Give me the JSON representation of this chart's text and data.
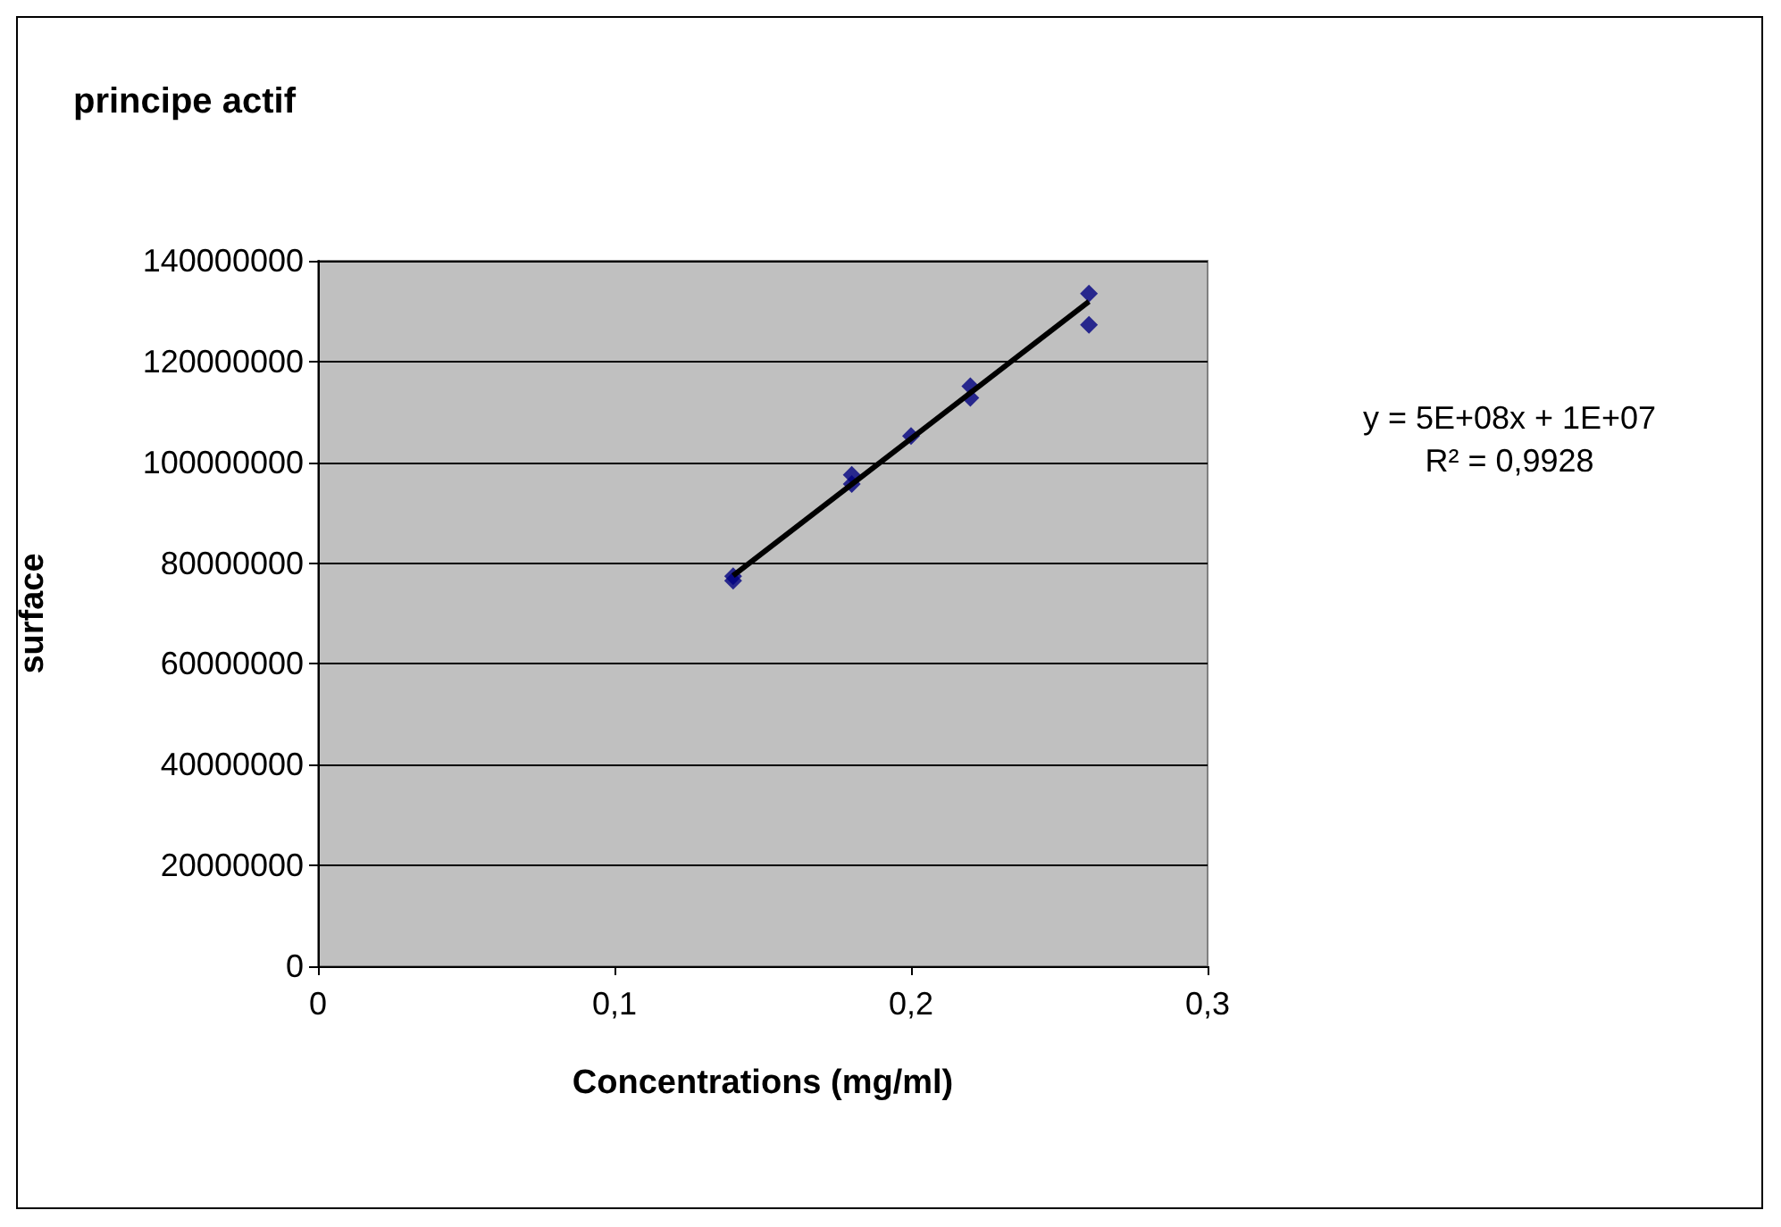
{
  "chart_data": {
    "type": "scatter",
    "title": "principe actif",
    "xlabel": "Concentrations (mg/ml)",
    "ylabel": "surface",
    "annotations": [
      "y = 5E+08x + 1E+07\nR² = 0,9928"
    ],
    "series": [
      {
        "color": "#000080",
        "x": [
          0.14,
          0.14,
          0.18,
          0.18,
          0.2,
          0.22,
          0.22,
          0.26,
          0.26
        ],
        "values": [
          77400000,
          76500000,
          97500000,
          95700000,
          105200000,
          115100000,
          112800000,
          133500000,
          127300000
        ]
      },
      {
        "type": "line",
        "color": "#000000",
        "x": [
          0.14,
          0.26
        ],
        "values": [
          77500000,
          131900000
        ],
        "marker": "none"
      }
    ],
    "xlim": [
      0,
      0.3
    ],
    "xticks": [
      {
        "value": 0,
        "label": "0"
      },
      {
        "value": 0.1,
        "label": "0,1"
      },
      {
        "value": 0.2,
        "label": "0,2"
      },
      {
        "value": 0.3,
        "label": "0,3"
      }
    ],
    "ylim": [
      0,
      140000000
    ],
    "yticks": [
      0,
      20000000,
      40000000,
      60000000,
      80000000,
      100000000,
      120000000,
      140000000
    ],
    "grid": "y",
    "marker": "diamond"
  }
}
